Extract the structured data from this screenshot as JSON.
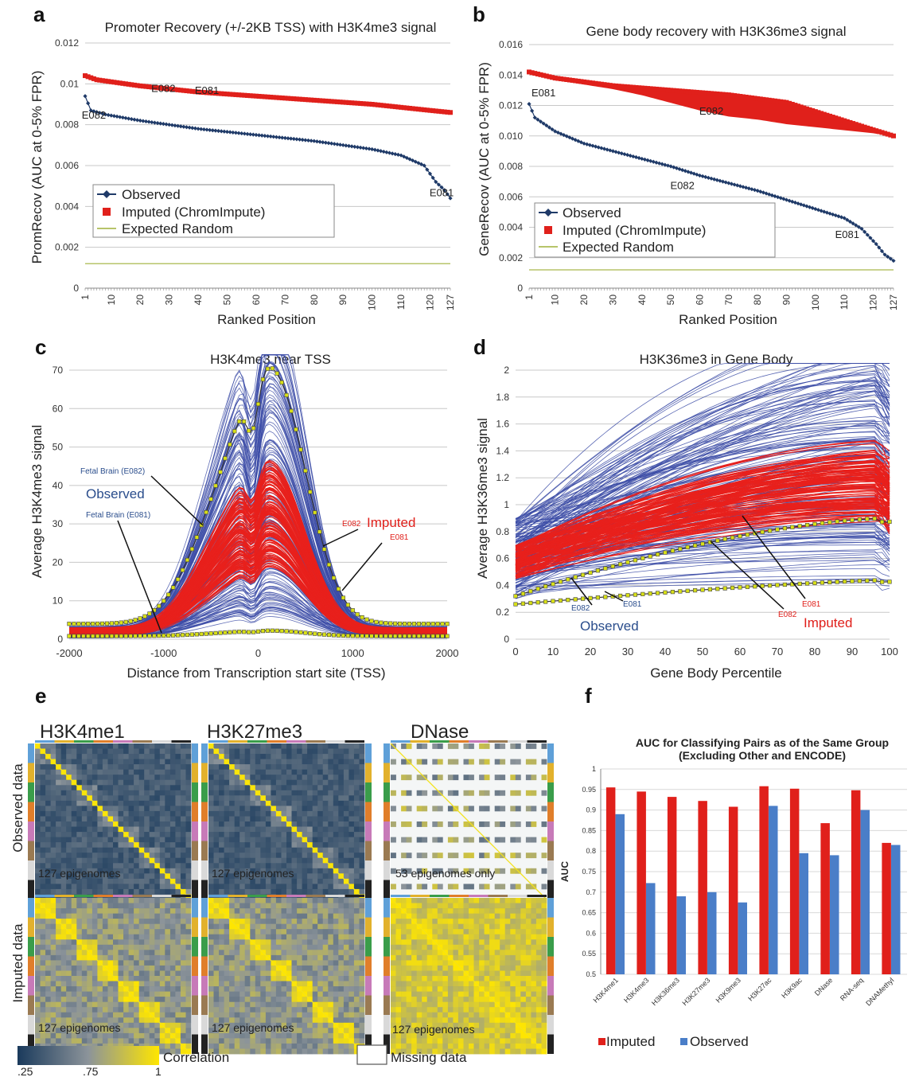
{
  "panel_labels": [
    "a",
    "b",
    "c",
    "d",
    "e",
    "f"
  ],
  "chart_data": [
    {
      "id": "a",
      "type": "scatter",
      "title": "Promoter Recovery (+/-2KB TSS) with H3K4me3 signal",
      "xlabel": "Ranked Position",
      "ylabel": "PromRecov (AUC at 0-5% FPR)",
      "xlim": [
        1,
        127
      ],
      "ylim": [
        0,
        0.012
      ],
      "xticks": [
        "1",
        "10",
        "20",
        "30",
        "40",
        "50",
        "60",
        "70",
        "80",
        "90",
        "100",
        "110",
        "120",
        "127"
      ],
      "yticks": [
        "0",
        "0.002",
        "0.004",
        "0.006",
        "0.008",
        "0.01",
        "0.012"
      ],
      "grid": true,
      "legend_position": "bottom-left",
      "series": [
        {
          "name": "Observed",
          "color": "#1f3a68",
          "anchors": [
            [
              1,
              0.0094
            ],
            [
              3,
              0.0087
            ],
            [
              8,
              0.0085
            ],
            [
              20,
              0.0082
            ],
            [
              40,
              0.0078
            ],
            [
              60,
              0.0075
            ],
            [
              80,
              0.0072
            ],
            [
              100,
              0.0068
            ],
            [
              110,
              0.0065
            ],
            [
              118,
              0.006
            ],
            [
              122,
              0.0052
            ],
            [
              125,
              0.0048
            ],
            [
              127,
              0.0044
            ]
          ]
        },
        {
          "name": "Imputed (ChromImpute)",
          "color": "#e0201b",
          "anchors": [
            [
              1,
              0.0104
            ],
            [
              5,
              0.0102
            ],
            [
              20,
              0.0099
            ],
            [
              40,
              0.0096
            ],
            [
              60,
              0.0094
            ],
            [
              80,
              0.0092
            ],
            [
              100,
              0.009
            ],
            [
              120,
              0.0087
            ],
            [
              127,
              0.0086
            ]
          ]
        },
        {
          "name": "Expected Random",
          "color": "#b7c46a",
          "anchors": [
            [
              1,
              0.0012
            ],
            [
              127,
              0.0012
            ]
          ]
        }
      ],
      "annotations": [
        {
          "text": "E082",
          "x": 4,
          "y": 0.0083
        },
        {
          "text": "E082",
          "x": 28,
          "y": 0.0096
        },
        {
          "text": "E081",
          "x": 43,
          "y": 0.0095
        },
        {
          "text": "E081",
          "x": 124,
          "y": 0.0045
        }
      ]
    },
    {
      "id": "b",
      "type": "scatter",
      "title": "Gene body recovery with H3K36me3 signal",
      "xlabel": "Ranked Position",
      "ylabel": "GeneRecov (AUC at 0-5% FPR)",
      "xlim": [
        1,
        127
      ],
      "ylim": [
        0,
        0.016
      ],
      "xticks": [
        "1",
        "10",
        "20",
        "30",
        "40",
        "50",
        "60",
        "70",
        "80",
        "90",
        "100",
        "110",
        "120",
        "127"
      ],
      "yticks": [
        "0",
        "0.002",
        "0.004",
        "0.006",
        "0.008",
        "0.010",
        "0.012",
        "0.014",
        "0.016"
      ],
      "grid": true,
      "legend_position": "bottom-left",
      "series": [
        {
          "name": "Observed",
          "color": "#1f3a68",
          "anchors": [
            [
              1,
              0.0121
            ],
            [
              3,
              0.0112
            ],
            [
              10,
              0.0103
            ],
            [
              20,
              0.0095
            ],
            [
              30,
              0.009
            ],
            [
              40,
              0.0085
            ],
            [
              50,
              0.008
            ],
            [
              60,
              0.0074
            ],
            [
              70,
              0.0069
            ],
            [
              80,
              0.0064
            ],
            [
              90,
              0.0058
            ],
            [
              100,
              0.0052
            ],
            [
              110,
              0.0046
            ],
            [
              116,
              0.0039
            ],
            [
              121,
              0.0029
            ],
            [
              124,
              0.0022
            ],
            [
              127,
              0.0018
            ]
          ]
        },
        {
          "name": "Imputed (ChromImpute)",
          "color": "#e0201b",
          "anchors": [
            [
              1,
              0.0142
            ],
            [
              10,
              0.0138
            ],
            [
              30,
              0.0133
            ],
            [
              50,
              0.013
            ],
            [
              70,
              0.0127
            ],
            [
              90,
              0.0122
            ],
            [
              100,
              0.0116
            ],
            [
              110,
              0.011
            ],
            [
              120,
              0.0104
            ],
            [
              127,
              0.01
            ]
          ],
          "lower": [
            [
              1,
              0.0142
            ],
            [
              10,
              0.0137
            ],
            [
              30,
              0.0131
            ],
            [
              40,
              0.0127
            ],
            [
              50,
              0.0122
            ],
            [
              60,
              0.0117
            ],
            [
              70,
              0.0113
            ],
            [
              80,
              0.0111
            ],
            [
              90,
              0.0108
            ],
            [
              100,
              0.0106
            ],
            [
              110,
              0.0104
            ],
            [
              120,
              0.0102
            ],
            [
              127,
              0.01
            ]
          ]
        },
        {
          "name": "Expected Random",
          "color": "#b7c46a",
          "anchors": [
            [
              1,
              0.0012
            ],
            [
              127,
              0.0012
            ]
          ]
        }
      ],
      "annotations": [
        {
          "text": "E081",
          "x": 6,
          "y": 0.0126
        },
        {
          "text": "E082",
          "x": 64,
          "y": 0.0114
        },
        {
          "text": "E082",
          "x": 54,
          "y": 0.0065
        },
        {
          "text": "E081",
          "x": 111,
          "y": 0.0033
        }
      ]
    },
    {
      "id": "c",
      "type": "line",
      "title": "H3K4me3 near TSS",
      "xlabel": "Distance from Transcription start site (TSS)",
      "ylabel": "Average H3K4me3 signal",
      "xlim": [
        -2000,
        2000
      ],
      "ylim": [
        0,
        70
      ],
      "xticks": [
        "-2000",
        "-1000",
        "0",
        "1000",
        "2000"
      ],
      "yticks": [
        "0",
        "10",
        "20",
        "30",
        "40",
        "50",
        "60",
        "70"
      ],
      "grid": true,
      "series_styles": {
        "observed_color": "#3b4ba6",
        "imputed_color": "#e8201c",
        "highlight_color": "#d8e017"
      },
      "annotations": [
        {
          "text": "Fetal Brain (E082)",
          "color": "#2a4d8c"
        },
        {
          "text": "Observed",
          "color": "#2a4d8c"
        },
        {
          "text": "Fetal Brain (E081)",
          "color": "#2a4d8c"
        },
        {
          "text": "E082",
          "color": "#e0201b"
        },
        {
          "text": "Imputed",
          "color": "#e0201b"
        },
        {
          "text": "E081",
          "color": "#e0201b"
        }
      ]
    },
    {
      "id": "d",
      "type": "line",
      "title": "H3K36me3 in Gene Body",
      "xlabel": "Gene Body Percentile",
      "ylabel": "Average H3K36me3 signal",
      "xlim": [
        0,
        100
      ],
      "ylim": [
        0,
        2
      ],
      "xticks": [
        "0",
        "10",
        "20",
        "30",
        "40",
        "50",
        "60",
        "70",
        "80",
        "90",
        "100"
      ],
      "yticks": [
        "0",
        "0.2",
        "0.4",
        "0.6",
        "0.8",
        "1",
        "1.2",
        "1.4",
        "1.6",
        "1.8",
        "2"
      ],
      "grid": true,
      "series_styles": {
        "observed_color": "#3b4ba6",
        "imputed_color": "#e8201c",
        "highlight_color": "#d8e017"
      },
      "annotations": [
        {
          "text": "E082",
          "color": "#2a4d8c"
        },
        {
          "text": "E081",
          "color": "#2a4d8c"
        },
        {
          "text": "Observed",
          "color": "#2a4d8c"
        },
        {
          "text": "E081",
          "color": "#e0201b"
        },
        {
          "text": "E082",
          "color": "#e0201b"
        },
        {
          "text": "Imputed",
          "color": "#e0201b"
        }
      ]
    },
    {
      "id": "e",
      "type": "heatmap",
      "row_labels": [
        "Observed data",
        "Imputed data"
      ],
      "columns": [
        {
          "title": "H3K4me1",
          "obs_caption": "127 epigenomes",
          "imp_caption": "127 epigenomes"
        },
        {
          "title": "H3K27me3",
          "obs_caption": "127 epigenomes",
          "imp_caption": "127 epigenomes"
        },
        {
          "title": "DNase",
          "obs_caption": "53 epigenomes only",
          "imp_caption": "127 epigenomes"
        }
      ],
      "colorbar": {
        "label": "Correlation",
        "ticks": [
          ".25",
          ".75",
          "1"
        ],
        "colors": [
          "#1a3a5c",
          "#8c949a",
          "#ffe600"
        ]
      },
      "missing_label": "Missing data"
    },
    {
      "id": "f",
      "type": "bar",
      "title": "AUC for Classifying Pairs as of the Same Group",
      "subtitle": "(Excluding Other and ENCODE)",
      "ylabel": "AUC",
      "ylim": [
        0.5,
        1
      ],
      "yticks": [
        "0.5",
        "0.55",
        "0.6",
        "0.65",
        "0.7",
        "0.75",
        "0.8",
        "0.85",
        "0.9",
        "0.95",
        "1"
      ],
      "categories": [
        "H3K4me1",
        "H3K4me3",
        "H3K36me3",
        "H3K27me3",
        "H3K9me3",
        "H3K27ac",
        "H3K9ac",
        "DNase",
        "RNA-seq",
        "DNAMethyl"
      ],
      "series": [
        {
          "name": "Imputed",
          "color": "#e0201b",
          "values": [
            0.955,
            0.945,
            0.932,
            0.922,
            0.908,
            0.958,
            0.952,
            0.868,
            0.948,
            0.82
          ]
        },
        {
          "name": "Observed",
          "color": "#4a7ec8",
          "values": [
            0.89,
            0.722,
            0.69,
            0.7,
            0.675,
            0.91,
            0.795,
            0.79,
            0.9,
            0.815
          ]
        }
      ],
      "legend_position": "bottom"
    }
  ]
}
